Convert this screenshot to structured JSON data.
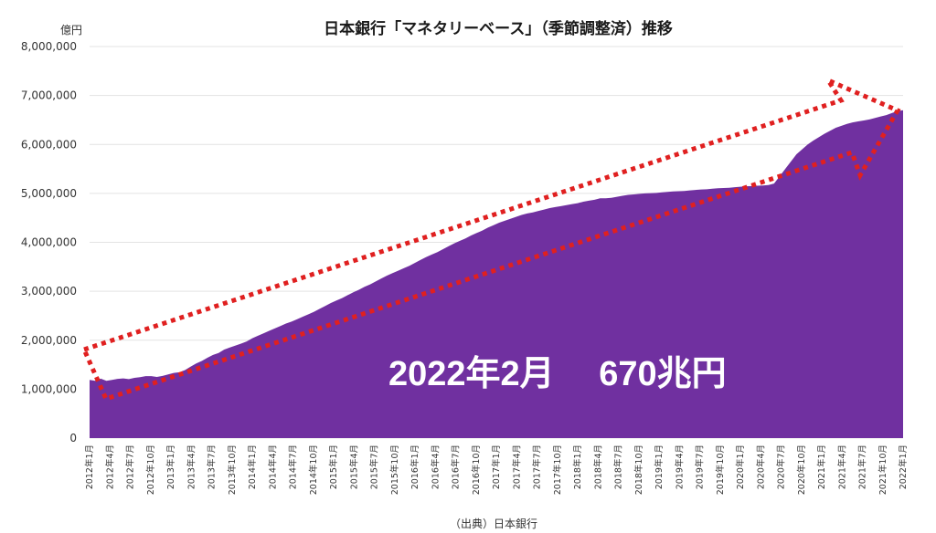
{
  "chart_data": {
    "type": "area",
    "title": "日本銀行「マネタリーベース」（季節調整済）推移",
    "unit_label": "億円",
    "source": "（出典）日本銀行",
    "annotation": "2022年2月　 670兆円",
    "ylim": [
      0,
      8000000
    ],
    "yticks": [
      "0",
      "1,000,000",
      "2,000,000",
      "3,000,000",
      "4,000,000",
      "5,000,000",
      "6,000,000",
      "7,000,000",
      "8,000,000"
    ],
    "grid": true,
    "fill_color": "#7030a0",
    "trend_arrow_color": "#e02020",
    "x_tick_labels": [
      "2012年1月",
      "2012年4月",
      "2012年7月",
      "2012年10月",
      "2013年1月",
      "2013年4月",
      "2013年7月",
      "2013年10月",
      "2014年1月",
      "2014年4月",
      "2014年7月",
      "2014年10月",
      "2015年1月",
      "2015年4月",
      "2015年7月",
      "2015年10月",
      "2016年1月",
      "2016年4月",
      "2016年7月",
      "2016年10月",
      "2017年1月",
      "2017年4月",
      "2017年7月",
      "2017年10月",
      "2018年1月",
      "2018年4月",
      "2018年7月",
      "2018年10月",
      "2019年1月",
      "2019年4月",
      "2019年7月",
      "2019年10月",
      "2020年1月",
      "2020年4月",
      "2020年7月",
      "2020年10月",
      "2021年1月",
      "2021年4月",
      "2021年7月",
      "2021年10月",
      "2022年1月"
    ],
    "values": [
      1190000,
      1170000,
      1215000,
      1170000,
      1190000,
      1210000,
      1220000,
      1205000,
      1230000,
      1245000,
      1265000,
      1265000,
      1250000,
      1270000,
      1300000,
      1330000,
      1345000,
      1390000,
      1460000,
      1525000,
      1575000,
      1640000,
      1700000,
      1740000,
      1810000,
      1850000,
      1890000,
      1930000,
      1975000,
      2040000,
      2090000,
      2140000,
      2190000,
      2240000,
      2290000,
      2340000,
      2380000,
      2430000,
      2480000,
      2530000,
      2580000,
      2640000,
      2700000,
      2760000,
      2810000,
      2860000,
      2920000,
      2980000,
      3030000,
      3090000,
      3140000,
      3200000,
      3260000,
      3320000,
      3370000,
      3420000,
      3470000,
      3520000,
      3580000,
      3640000,
      3700000,
      3750000,
      3800000,
      3860000,
      3920000,
      3980000,
      4030000,
      4080000,
      4140000,
      4190000,
      4240000,
      4300000,
      4350000,
      4400000,
      4440000,
      4480000,
      4520000,
      4560000,
      4590000,
      4610000,
      4640000,
      4670000,
      4700000,
      4720000,
      4740000,
      4760000,
      4780000,
      4800000,
      4830000,
      4850000,
      4870000,
      4900000,
      4900000,
      4910000,
      4930000,
      4950000,
      4970000,
      4980000,
      4990000,
      5000000,
      5005000,
      5010000,
      5020000,
      5030000,
      5040000,
      5045000,
      5050000,
      5060000,
      5070000,
      5080000,
      5085000,
      5095000,
      5105000,
      5110000,
      5115000,
      5125000,
      5135000,
      5145000,
      5150000,
      5155000,
      5160000,
      5170000,
      5200000,
      5350000,
      5500000,
      5650000,
      5800000,
      5900000,
      6000000,
      6080000,
      6150000,
      6220000,
      6280000,
      6340000,
      6380000,
      6420000,
      6450000,
      6470000,
      6490000,
      6510000,
      6540000,
      6570000,
      6600000,
      6640000,
      6680000,
      6700000
    ]
  }
}
